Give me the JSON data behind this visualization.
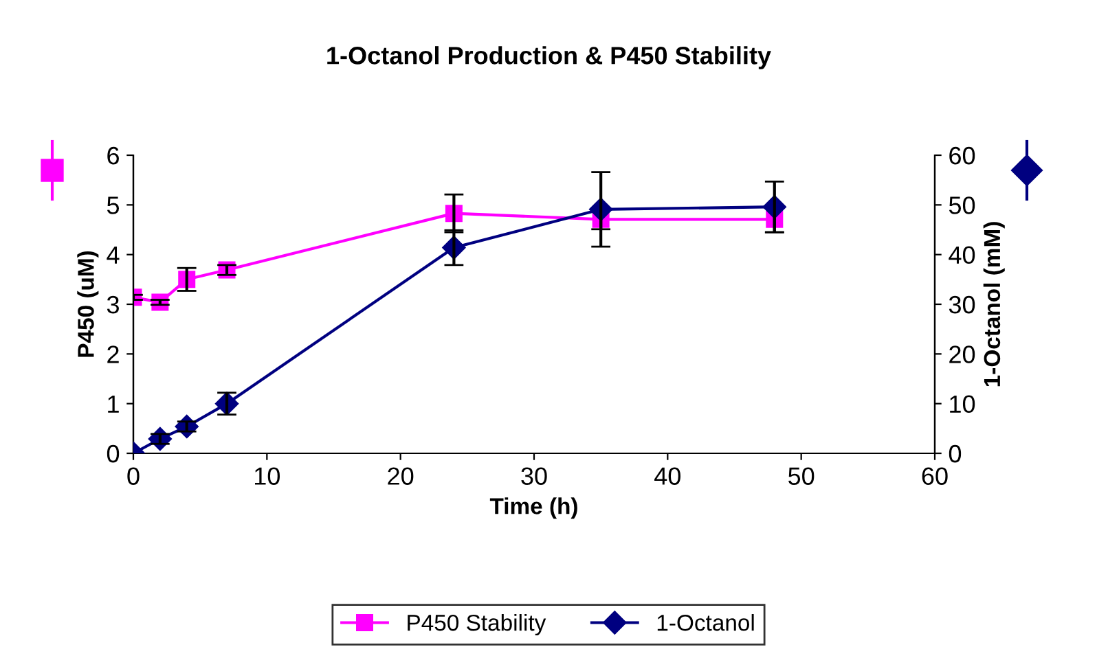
{
  "chart_data": {
    "type": "line",
    "title": "1-Octanol Production & P450 Stability",
    "xlabel": "Time (h)",
    "ylabel": "P450 (uM)",
    "y2label": "1-Octanol (mM)",
    "x": [
      0,
      2,
      4,
      7,
      24,
      35,
      48
    ],
    "series": [
      {
        "name": "P450 Stability",
        "color": "#ff00ff",
        "marker": "square",
        "values": [
          3.14,
          3.04,
          3.5,
          3.69,
          4.83,
          4.71,
          4.71
        ],
        "errors": [
          0.05,
          0.05,
          0.23,
          0.1,
          0.38,
          0.2,
          0.26
        ]
      },
      {
        "name": "1-Octanol",
        "color": "#000080",
        "marker": "diamond",
        "axis": "y2",
        "values": [
          0,
          2.9,
          5.4,
          10.0,
          41.4,
          49.1,
          49.6
        ],
        "errors": [
          null,
          1,
          1,
          2.2,
          3.5,
          7.5,
          5.1
        ]
      }
    ],
    "xlim": [
      0,
      60
    ],
    "xticks": [
      0,
      10,
      20,
      30,
      40,
      50,
      60
    ],
    "ylim": [
      0,
      6
    ],
    "yticks": [
      0,
      1,
      2,
      3,
      4,
      5,
      6
    ],
    "y2lim": [
      0,
      60
    ],
    "y2ticks": [
      0,
      10,
      20,
      30,
      40,
      50,
      60
    ],
    "grid": false,
    "legend": "bottom"
  }
}
